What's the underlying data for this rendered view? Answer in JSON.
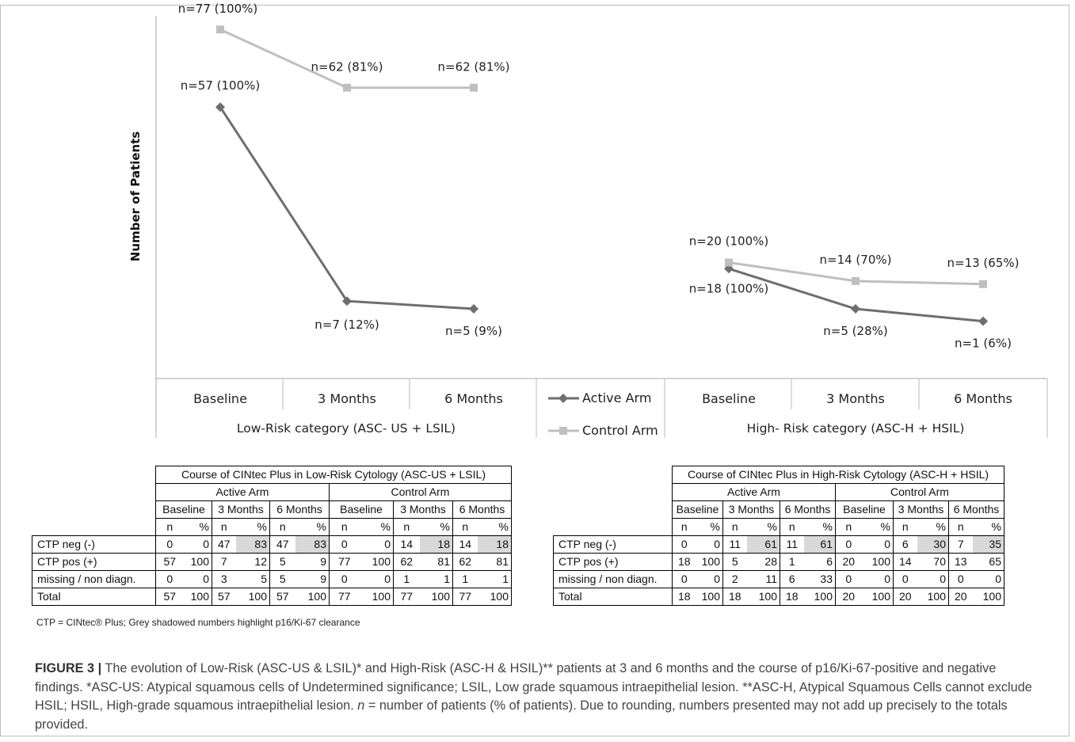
{
  "chart_data": {
    "type": "line",
    "ylabel": "Number of Patients",
    "groups": [
      {
        "name": "Low-Risk category (ASC- US + LSIL)",
        "categories": [
          "Baseline",
          "3 Months",
          "6 Months"
        ],
        "series": [
          {
            "name": "Active Arm",
            "values": [
              57,
              7,
              5
            ],
            "labels": [
              "n=57 (100%)",
              "n=7 (12%)",
              "n=5 (9%)"
            ]
          },
          {
            "name": "Control Arm",
            "values": [
              77,
              62,
              62
            ],
            "labels": [
              "n=77 (100%)",
              "n=62 (81%)",
              "n=62 (81%)"
            ]
          }
        ]
      },
      {
        "name": "High- Risk category (ASC-H + HSIL)",
        "categories": [
          "Baseline",
          "3 Months",
          "6 Months"
        ],
        "series": [
          {
            "name": "Active Arm",
            "values": [
              18,
              5,
              1
            ],
            "labels": [
              "n=18 (100%)",
              "n=5 (28%)",
              "n=1 (6%)"
            ]
          },
          {
            "name": "Control Arm",
            "values": [
              20,
              14,
              13
            ],
            "labels": [
              "n=20 (100%)",
              "n=14 (70%)",
              "n=13 (65%)"
            ]
          }
        ]
      }
    ],
    "legend": [
      "Active Arm",
      "Control Arm"
    ],
    "legend_position": "between panels",
    "colors": {
      "Active Arm": "#6e6e6e",
      "Control Arm": "#bfbfbf"
    }
  },
  "tables": [
    {
      "title": "Course of CINtec Plus in Low-Risk Cytology (ASC-US + LSIL)",
      "arms": [
        "Active Arm",
        "Control Arm"
      ],
      "timepoints": [
        "Baseline",
        "3 Months",
        "6 Months"
      ],
      "subheaders": [
        "n",
        "%"
      ],
      "rows": [
        {
          "label": "CTP neg (-)",
          "cells": [
            "0",
            "0",
            "47",
            "83",
            "47",
            "83",
            "0",
            "0",
            "14",
            "18",
            "14",
            "18"
          ]
        },
        {
          "label": "CTP pos (+)",
          "cells": [
            "57",
            "100",
            "7",
            "12",
            "5",
            "9",
            "77",
            "100",
            "62",
            "81",
            "62",
            "81"
          ]
        },
        {
          "label": "missing / non diagn.",
          "cells": [
            "0",
            "0",
            "3",
            "5",
            "5",
            "9",
            "0",
            "0",
            "1",
            "1",
            "1",
            "1"
          ]
        },
        {
          "label": "Total",
          "cells": [
            "57",
            "100",
            "57",
            "100",
            "57",
            "100",
            "77",
            "100",
            "77",
            "100",
            "77",
            "100"
          ]
        }
      ]
    },
    {
      "title": "Course of CINtec Plus in High-Risk Cytology (ASC-H + HSIL)",
      "arms": [
        "Active Arm",
        "Control Arm"
      ],
      "timepoints": [
        "Baseline",
        "3 Months",
        "6 Months"
      ],
      "subheaders": [
        "n",
        "%"
      ],
      "rows": [
        {
          "label": "CTP neg (-)",
          "cells": [
            "0",
            "0",
            "11",
            "61",
            "11",
            "61",
            "0",
            "0",
            "6",
            "30",
            "7",
            "35"
          ]
        },
        {
          "label": "CTP pos (+)",
          "cells": [
            "18",
            "100",
            "5",
            "28",
            "1",
            "6",
            "20",
            "100",
            "14",
            "70",
            "13",
            "65"
          ]
        },
        {
          "label": "missing / non diagn.",
          "cells": [
            "0",
            "0",
            "2",
            "11",
            "6",
            "33",
            "0",
            "0",
            "0",
            "0",
            "0",
            "0"
          ]
        },
        {
          "label": "Total",
          "cells": [
            "18",
            "100",
            "18",
            "100",
            "18",
            "100",
            "20",
            "100",
            "20",
            "100",
            "20",
            "100"
          ]
        }
      ]
    }
  ],
  "footnote": "CTP = CINtec® Plus; Grey shadowed numbers highlight p16/Ki-67 clearance",
  "caption": {
    "label": "FIGURE 3 |",
    "parts": [
      "The evolution of Low-Risk (ASC-US & LSIL)* and High-Risk (ASC-H & HSIL)** patients at 3 and 6 months and the course of p16/Ki-67-positive and negative findings. *ASC-US: Atypical squamous cells of Undetermined significance; LSIL, Low grade squamous intraepithelial lesion. **ASC-H, Atypical Squamous Cells cannot exclude HSIL; HSIL, High-grade squamous intraepithelial lesion. ",
      "n",
      " = number of patients (% of patients). Due to rounding, numbers presented may not add up precisely to the totals provided."
    ]
  }
}
